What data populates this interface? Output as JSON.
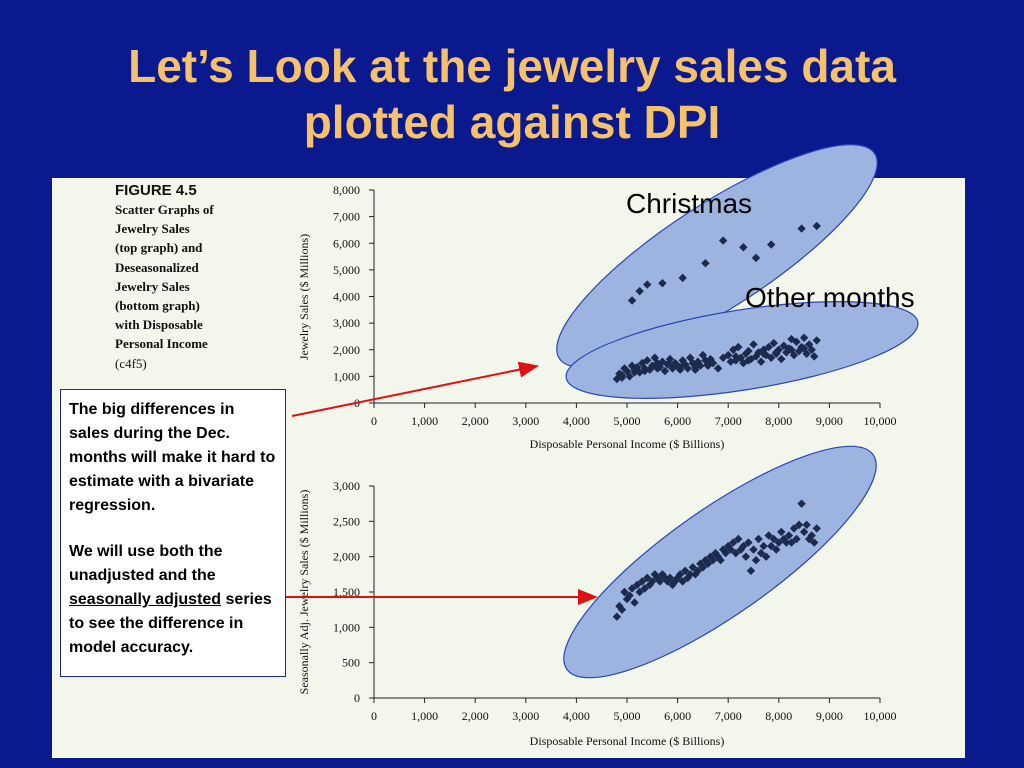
{
  "slide": {
    "title_line1": "Let’s Look at the jewelry sales data",
    "title_line2": "plotted against DPI"
  },
  "figure": {
    "label": "FIGURE 4.5",
    "description": "Scatter Graphs of\nJewelry Sales\n(top graph) and\nDeseasonalized\nJewelry Sales\n(bottom graph)\nwith Disposable\nPersonal Income",
    "code": "(c4f5)"
  },
  "note": {
    "para1": "The big differences in sales during the Dec. months will make it hard to estimate with a bivariate regression.",
    "para2_start": "We will use both the unadjusted and the",
    "para2_underlined": "seasonally adjusted",
    "para2_end": "series to see the difference in model accuracy."
  },
  "annotations": {
    "christmas": "Christmas",
    "other_months": "Other months"
  },
  "colors": {
    "background": "#0a1a8e",
    "title": "#f5c26b",
    "panel": "#f3f6ea",
    "ellipse_fill": "#9db4e0",
    "ellipse_stroke": "#2a46b8",
    "marker": "#1c2a4e",
    "arrow": "#e01010"
  },
  "chart_data": [
    {
      "type": "scatter",
      "title": "",
      "xlabel": "Disposable Personal Income ($ Billions)",
      "ylabel": "Jewelry Sales ($ Millions)",
      "xlim": [
        0,
        10000
      ],
      "ylim": [
        0,
        8000
      ],
      "xticks": [
        0,
        1000,
        2000,
        3000,
        4000,
        5000,
        6000,
        7000,
        8000,
        9000,
        10000
      ],
      "yticks": [
        0,
        1000,
        2000,
        3000,
        4000,
        5000,
        6000,
        7000,
        8000
      ],
      "xtick_labels": [
        "0",
        "1,000",
        "2,000",
        "3,000",
        "4,000",
        "5,000",
        "6,000",
        "7,000",
        "8,000",
        "9,000",
        "10,000"
      ],
      "ytick_labels": [
        "0",
        "1,000",
        "2,000",
        "3,000",
        "4,000",
        "5,000",
        "6,000",
        "7,000",
        "8,000"
      ],
      "grid": false,
      "series": [
        {
          "x": [
            5100,
            5250,
            5400,
            5700,
            6100,
            6550,
            6900,
            7300,
            7550,
            7850,
            8450,
            8750
          ],
          "y": [
            3850,
            4200,
            4450,
            4500,
            4700,
            5250,
            6100,
            5850,
            5450,
            5950,
            6550,
            6650
          ]
        },
        {
          "x": [
            4800,
            4850,
            4900,
            4950,
            5000,
            5050,
            5100,
            5150,
            5200,
            5250,
            5300,
            5350,
            5400,
            5450,
            5500,
            5550,
            5600,
            5650,
            5700,
            5750,
            5800,
            5850,
            5900,
            5950,
            6000,
            6050,
            6100,
            6150,
            6200,
            6250,
            6300,
            6350,
            6400,
            6450,
            6500,
            6550,
            6600,
            6650,
            6700,
            6800,
            6900,
            7000,
            7050,
            7100,
            7150,
            7200,
            7250,
            7300,
            7350,
            7400,
            7450,
            7500,
            7550,
            7600,
            7650,
            7700,
            7750,
            7800,
            7850,
            7900,
            7950,
            8000,
            8050,
            8100,
            8150,
            8200,
            8250,
            8300,
            8350,
            8400,
            8450,
            8500,
            8550,
            8600,
            8650,
            8700,
            8750,
            4900,
            5150,
            5350,
            5600,
            5850,
            6050,
            6350,
            6600,
            7150,
            7400,
            7700,
            7950,
            8250,
            8500
          ],
          "y": [
            900,
            1100,
            1050,
            1300,
            1200,
            1000,
            1400,
            1250,
            1350,
            1150,
            1500,
            1300,
            1600,
            1250,
            1400,
            1700,
            1500,
            1350,
            1550,
            1200,
            1450,
            1650,
            1300,
            1500,
            1400,
            1350,
            1600,
            1450,
            1300,
            1700,
            1500,
            1250,
            1550,
            1400,
            1800,
            1600,
            1450,
            1650,
            1500,
            1300,
            1700,
            1800,
            1550,
            2000,
            1600,
            2100,
            1700,
            1500,
            1850,
            1950,
            1650,
            2200,
            1750,
            1900,
            1550,
            2000,
            1800,
            2100,
            1700,
            2250,
            1850,
            2000,
            1650,
            2150,
            1900,
            2050,
            2400,
            1800,
            2300,
            1950,
            2100,
            2450,
            1850,
            2200,
            2000,
            1750,
            2350,
            950,
            1150,
            1200,
            1300,
            1450,
            1250,
            1350,
            1400,
            1750,
            1600,
            1850,
            1900,
            2000,
            2050
          ]
        }
      ]
    },
    {
      "type": "scatter",
      "title": "",
      "xlabel": "Disposable Personal Income ($ Billions)",
      "ylabel": "Seasonally Adj. Jewelry Sales ($ Millions)",
      "xlim": [
        0,
        10000
      ],
      "ylim": [
        0,
        3000
      ],
      "xticks": [
        0,
        1000,
        2000,
        3000,
        4000,
        5000,
        6000,
        7000,
        8000,
        9000,
        10000
      ],
      "yticks": [
        0,
        500,
        1000,
        1500,
        2000,
        2500,
        3000
      ],
      "xtick_labels": [
        "0",
        "1,000",
        "2,000",
        "3,000",
        "4,000",
        "5,000",
        "6,000",
        "7,000",
        "8,000",
        "9,000",
        "10,000"
      ],
      "ytick_labels": [
        "0",
        "500",
        "1,000",
        "1,500",
        "2,000",
        "2,500",
        "3,000"
      ],
      "grid": false,
      "series": [
        {
          "x": [
            4800,
            4850,
            4900,
            4950,
            5000,
            5050,
            5100,
            5150,
            5200,
            5250,
            5300,
            5350,
            5400,
            5450,
            5500,
            5550,
            5600,
            5650,
            5700,
            5750,
            5800,
            5850,
            5900,
            5950,
            6000,
            6050,
            6100,
            6150,
            6200,
            6250,
            6300,
            6350,
            6400,
            6450,
            6500,
            6550,
            6600,
            6650,
            6700,
            6750,
            6800,
            6850,
            6900,
            6950,
            7000,
            7050,
            7100,
            7150,
            7200,
            7250,
            7300,
            7350,
            7400,
            7450,
            7500,
            7550,
            7600,
            7650,
            7700,
            7750,
            7800,
            7850,
            7900,
            7950,
            8000,
            8050,
            8100,
            8150,
            8200,
            8250,
            8300,
            8350,
            8400,
            8450,
            8500,
            8550,
            8600,
            8650,
            8700,
            8750
          ],
          "y": [
            1150,
            1300,
            1250,
            1500,
            1400,
            1450,
            1550,
            1350,
            1600,
            1500,
            1650,
            1550,
            1700,
            1600,
            1650,
            1750,
            1700,
            1650,
            1750,
            1700,
            1650,
            1700,
            1600,
            1650,
            1700,
            1750,
            1650,
            1800,
            1700,
            1750,
            1850,
            1750,
            1800,
            1900,
            1850,
            1950,
            1900,
            2000,
            1950,
            2050,
            2000,
            1950,
            2100,
            2050,
            2150,
            2100,
            2200,
            2050,
            2250,
            2100,
            2150,
            2000,
            2200,
            1800,
            2100,
            1950,
            2250,
            2050,
            2150,
            2000,
            2300,
            2150,
            2250,
            2100,
            2200,
            2350,
            2250,
            2200,
            2300,
            2200,
            2400,
            2250,
            2450,
            2750,
            2350,
            2450,
            2250,
            2300,
            2200,
            2400
          ]
        }
      ]
    }
  ]
}
